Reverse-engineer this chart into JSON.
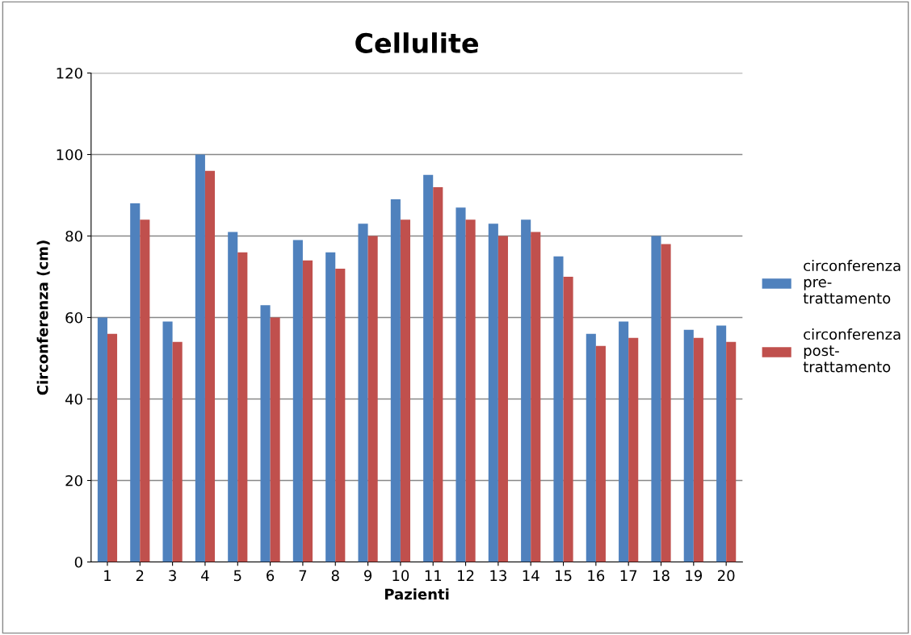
{
  "chart_data": {
    "type": "bar",
    "title": "Cellulite",
    "xlabel": "Pazienti",
    "ylabel": "Circonferenza (cm)",
    "categories": [
      "1",
      "2",
      "3",
      "4",
      "5",
      "6",
      "7",
      "8",
      "9",
      "10",
      "11",
      "12",
      "13",
      "14",
      "15",
      "16",
      "17",
      "18",
      "19",
      "20"
    ],
    "series": [
      {
        "name": "circonferenza pre-trattamento",
        "color": "#4f81bd",
        "values": [
          60,
          88,
          59,
          100,
          81,
          63,
          79,
          76,
          83,
          89,
          95,
          87,
          83,
          84,
          75,
          56,
          59,
          80,
          57,
          58
        ]
      },
      {
        "name": "circonferenza post-trattamento",
        "color": "#c0504d",
        "values": [
          56,
          84,
          54,
          96,
          76,
          60,
          74,
          72,
          80,
          84,
          92,
          84,
          80,
          81,
          70,
          53,
          55,
          78,
          55,
          54
        ]
      }
    ],
    "ylim": [
      0,
      120
    ],
    "yticks": [
      0,
      20,
      40,
      60,
      80,
      100,
      120
    ],
    "grid": "y",
    "legend": "right"
  }
}
